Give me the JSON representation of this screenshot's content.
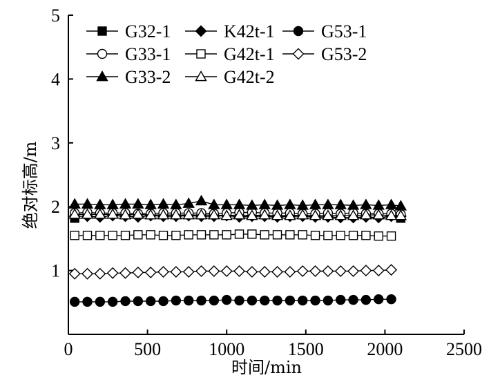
{
  "chart_data": {
    "type": "line",
    "xlabel": "时间/min",
    "ylabel": "绝对标高/m",
    "xlim": [
      0,
      2500
    ],
    "ylim": [
      0,
      5
    ],
    "xticks": [
      "0",
      "500",
      "1000",
      "1500",
      "2000",
      "2500"
    ],
    "yticks": [
      "1",
      "2",
      "3",
      "4",
      "5"
    ],
    "grid": false,
    "legend_position": "top-left",
    "series": [
      {
        "name": "G32-1",
        "marker": "square-filled",
        "x": [
          40,
          2100
        ],
        "y": [
          1.82,
          1.82
        ]
      },
      {
        "name": "K42t-1",
        "marker": "diamond-filled",
        "x": [
          40,
          120,
          200,
          280,
          360,
          440,
          520,
          600,
          680,
          760,
          840,
          920,
          1000,
          1080,
          1160,
          1240,
          1320,
          1400,
          1480,
          1560,
          1640,
          1720,
          1800,
          1880,
          1960,
          2040,
          2100
        ],
        "y": [
          1.85,
          1.85,
          1.84,
          1.86,
          1.85,
          1.84,
          1.86,
          1.85,
          1.85,
          1.86,
          1.85,
          1.85,
          1.86,
          1.84,
          1.85,
          1.85,
          1.84,
          1.85,
          1.85,
          1.84,
          1.84,
          1.83,
          1.83,
          1.84,
          1.83,
          1.85,
          1.85
        ]
      },
      {
        "name": "G53-1",
        "marker": "circle-filled",
        "x": [
          40,
          120,
          200,
          280,
          360,
          440,
          520,
          600,
          680,
          760,
          840,
          920,
          1000,
          1080,
          1160,
          1240,
          1320,
          1400,
          1480,
          1560,
          1640,
          1720,
          1800,
          1880,
          1960,
          2040
        ],
        "y": [
          0.51,
          0.51,
          0.51,
          0.51,
          0.52,
          0.52,
          0.52,
          0.52,
          0.53,
          0.53,
          0.53,
          0.53,
          0.54,
          0.53,
          0.53,
          0.53,
          0.53,
          0.53,
          0.53,
          0.53,
          0.53,
          0.54,
          0.54,
          0.54,
          0.55,
          0.55
        ]
      },
      {
        "name": "G33-1",
        "marker": "circle-open",
        "x": [
          40,
          120,
          200,
          280,
          360,
          440,
          520,
          600,
          680,
          760,
          840,
          920,
          1000,
          1080,
          1160,
          1240,
          1320,
          1400,
          1480,
          1560,
          1640,
          1720,
          1800,
          1880,
          1960,
          2040,
          2100
        ],
        "y": [
          1.9,
          1.91,
          1.9,
          1.9,
          1.9,
          1.89,
          1.89,
          1.9,
          1.9,
          1.9,
          1.9,
          1.89,
          1.9,
          1.91,
          1.91,
          1.9,
          1.9,
          1.9,
          1.89,
          1.89,
          1.9,
          1.89,
          1.9,
          1.89,
          1.89,
          1.89,
          1.88
        ]
      },
      {
        "name": "G42t-1",
        "marker": "square-open",
        "x": [
          40,
          120,
          200,
          280,
          360,
          440,
          520,
          600,
          680,
          760,
          840,
          920,
          1000,
          1080,
          1160,
          1240,
          1320,
          1400,
          1480,
          1560,
          1640,
          1720,
          1800,
          1880,
          1960,
          2040
        ],
        "y": [
          1.55,
          1.55,
          1.55,
          1.55,
          1.55,
          1.56,
          1.56,
          1.55,
          1.55,
          1.56,
          1.56,
          1.56,
          1.56,
          1.57,
          1.57,
          1.56,
          1.56,
          1.56,
          1.56,
          1.55,
          1.55,
          1.55,
          1.55,
          1.55,
          1.54,
          1.54
        ]
      },
      {
        "name": "G53-2",
        "marker": "diamond-open",
        "x": [
          40,
          120,
          200,
          280,
          360,
          440,
          520,
          600,
          680,
          760,
          840,
          920,
          1000,
          1080,
          1160,
          1240,
          1320,
          1400,
          1480,
          1560,
          1640,
          1720,
          1800,
          1880,
          1960,
          2040
        ],
        "y": [
          0.95,
          0.95,
          0.95,
          0.96,
          0.96,
          0.97,
          0.97,
          0.98,
          0.98,
          0.98,
          0.99,
          0.99,
          0.99,
          0.99,
          0.98,
          0.98,
          0.98,
          0.98,
          0.99,
          0.99,
          0.99,
          0.99,
          0.99,
          1.0,
          1.0,
          1.01
        ]
      },
      {
        "name": "G33-2",
        "marker": "triangle-filled",
        "x": [
          40,
          120,
          200,
          280,
          360,
          440,
          520,
          600,
          680,
          760,
          840,
          920,
          1000,
          1080,
          1160,
          1240,
          1320,
          1400,
          1480,
          1560,
          1640,
          1720,
          1800,
          1880,
          1960,
          2040,
          2100
        ],
        "y": [
          2.04,
          2.04,
          2.03,
          2.03,
          2.04,
          2.04,
          2.03,
          2.04,
          2.03,
          2.05,
          2.09,
          2.03,
          2.03,
          2.03,
          2.02,
          2.03,
          2.02,
          2.03,
          2.02,
          2.03,
          2.03,
          2.03,
          2.02,
          2.03,
          2.02,
          2.03,
          2.01
        ]
      },
      {
        "name": "G42t-2",
        "marker": "triangle-open",
        "x": [
          40,
          120,
          200,
          280,
          360,
          440,
          520,
          600,
          680,
          760,
          840,
          920,
          1000,
          1080,
          1160,
          1240,
          1320,
          1400,
          1480,
          1560,
          1640,
          1720,
          1800,
          1880,
          1960,
          2040,
          2100
        ],
        "y": [
          1.88,
          1.88,
          1.88,
          1.88,
          1.87,
          1.88,
          1.87,
          1.87,
          1.87,
          1.87,
          1.87,
          1.87,
          1.86,
          1.87,
          1.86,
          1.87,
          1.86,
          1.86,
          1.87,
          1.86,
          1.86,
          1.86,
          1.86,
          1.87,
          1.87,
          1.86,
          1.86
        ]
      }
    ]
  }
}
